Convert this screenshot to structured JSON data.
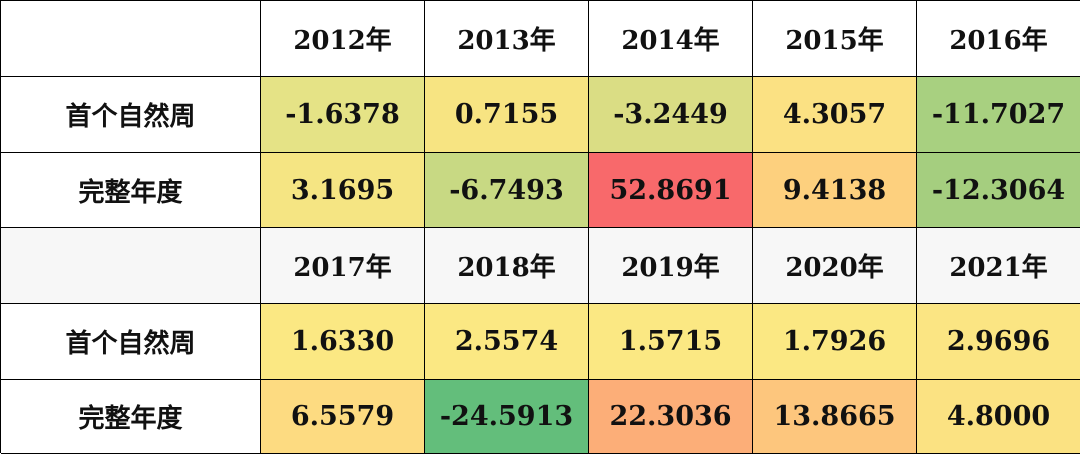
{
  "blocks": [
    {
      "years": [
        "2012年",
        "2013年",
        "2014年",
        "2015年",
        "2016年"
      ],
      "rows": [
        {
          "label": "首个自然周",
          "values": [
            "-1.6378",
            "0.7155",
            "-3.2449",
            "4.3057",
            "-11.7027"
          ],
          "colors": [
            "#e5e386",
            "#f7e482",
            "#dadd84",
            "#fbe183",
            "#a8d080"
          ]
        },
        {
          "label": "完整年度",
          "values": [
            "3.1695",
            "-6.7493",
            "52.8691",
            "9.4138",
            "-12.3064"
          ],
          "colors": [
            "#f5e583",
            "#c8d983",
            "#f8696b",
            "#fdd07e",
            "#a5ce7f"
          ]
        }
      ]
    },
    {
      "years": [
        "2017年",
        "2018年",
        "2019年",
        "2020年",
        "2021年"
      ],
      "rows": [
        {
          "label": "首个自然周",
          "values": [
            "1.6330",
            "2.5574",
            "1.5715",
            "1.7926",
            "2.9696"
          ],
          "colors": [
            "#fbe883",
            "#fbe883",
            "#fbe883",
            "#fbe883",
            "#fbe583"
          ]
        },
        {
          "label": "完整年度",
          "values": [
            "6.5579",
            "-24.5913",
            "22.3036",
            "13.8665",
            "4.8000"
          ],
          "colors": [
            "#fddb81",
            "#63be7b",
            "#fcae78",
            "#fdc67d",
            "#fbe282"
          ]
        }
      ]
    }
  ]
}
